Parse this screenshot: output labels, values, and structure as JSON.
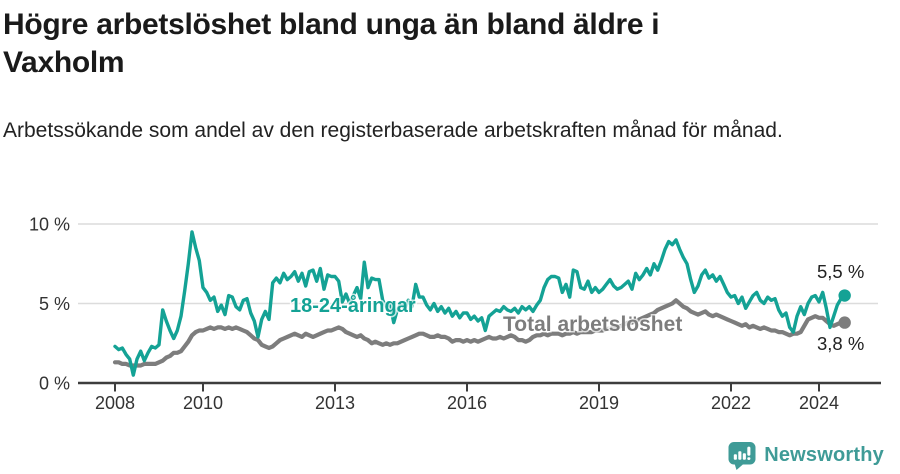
{
  "header": {
    "title_line1": "Högre arbetslöshet bland unga än bland äldre i",
    "title_line2": "Vaxholm",
    "subtitle": "Arbetssökande som andel av den registerbaserade arbetskraften månad för månad."
  },
  "chart_data": {
    "type": "line",
    "title": "Högre arbetslöshet bland unga än bland äldre i Vaxholm",
    "subtitle": "Arbetssökande som andel av den registerbaserade arbetskraften månad för månad.",
    "unit": "percent",
    "x_interval": "monthly",
    "x_start": "2008-01",
    "x_end": "2024-08",
    "x_tick_years": [
      2008,
      2010,
      2013,
      2016,
      2019,
      2022,
      2024
    ],
    "x_tick_labels": [
      "2008",
      "2010",
      "2013",
      "2016",
      "2019",
      "2022",
      "2024"
    ],
    "y_ticks": [
      0,
      5,
      10
    ],
    "y_tick_labels": [
      "0 %",
      "5 %",
      "10 %"
    ],
    "ylim": [
      0,
      10
    ],
    "grid": "horizontal-only",
    "colors": {
      "youth": "#14a295",
      "total": "#7d7d7d",
      "grid": "#dcdcdc",
      "axis": "#3d3d3d",
      "tick_text": "#333333",
      "end_label_text": "#222222"
    },
    "series": [
      {
        "name": "18-24-åringar",
        "color": "#14a295",
        "end_label": "5,5 %",
        "end_value": 5.5,
        "values": [
          2.3,
          2.1,
          2.2,
          1.8,
          1.5,
          0.5,
          1.5,
          2.0,
          1.4,
          1.9,
          2.3,
          2.2,
          2.4,
          4.6,
          3.9,
          3.3,
          2.8,
          3.3,
          4.2,
          5.8,
          7.5,
          9.5,
          8.5,
          7.7,
          6.0,
          5.7,
          5.2,
          5.4,
          4.5,
          4.9,
          4.3,
          5.5,
          5.4,
          4.8,
          4.6,
          5.2,
          5.3,
          4.4,
          3.9,
          2.9,
          4.0,
          4.5,
          4.0,
          6.3,
          6.6,
          6.3,
          6.9,
          6.5,
          6.7,
          7.0,
          6.4,
          6.9,
          6.1,
          7.0,
          7.1,
          6.4,
          7.2,
          5.9,
          6.8,
          6.7,
          6.7,
          6.4,
          5.1,
          5.6,
          5.0,
          5.5,
          6.0,
          5.3,
          7.6,
          6.0,
          6.6,
          6.5,
          6.5,
          5.2,
          4.8,
          5.0,
          3.8,
          4.6,
          5.0,
          4.7,
          5.2,
          4.8,
          6.2,
          5.4,
          5.4,
          4.9,
          4.6,
          5.0,
          4.5,
          4.8,
          4.4,
          4.7,
          4.2,
          4.5,
          4.1,
          4.4,
          4.4,
          4.0,
          4.2,
          3.9,
          4.1,
          3.3,
          4.2,
          4.4,
          4.6,
          4.5,
          4.8,
          4.6,
          4.5,
          4.7,
          4.4,
          4.8,
          4.6,
          4.8,
          4.5,
          4.9,
          5.2,
          6.0,
          6.5,
          6.7,
          6.7,
          6.6,
          5.7,
          6.2,
          5.4,
          7.1,
          7.0,
          6.0,
          5.9,
          6.4,
          5.7,
          6.0,
          5.7,
          5.9,
          6.2,
          6.5,
          6.1,
          5.9,
          6.0,
          6.2,
          6.4,
          5.9,
          6.9,
          6.5,
          6.8,
          7.2,
          6.8,
          7.5,
          7.1,
          7.7,
          8.4,
          8.9,
          8.7,
          9.0,
          8.4,
          7.9,
          7.5,
          6.5,
          5.7,
          6.1,
          6.8,
          7.1,
          6.6,
          6.8,
          6.4,
          6.7,
          6.2,
          5.7,
          5.4,
          5.5,
          5.0,
          5.4,
          4.7,
          5.1,
          5.5,
          5.7,
          5.2,
          5.0,
          5.4,
          5.2,
          5.3,
          4.6,
          4.2,
          4.4,
          3.5,
          3.2,
          4.2,
          4.8,
          4.3,
          5.0,
          5.4,
          5.5,
          5.1,
          5.7,
          4.7,
          3.5,
          4.2,
          4.9,
          5.3,
          5.5
        ]
      },
      {
        "name": "Total arbetslöshet",
        "color": "#7d7d7d",
        "end_label": "3,8 %",
        "end_value": 3.8,
        "values": [
          1.3,
          1.3,
          1.2,
          1.2,
          1.1,
          1.1,
          1.1,
          1.1,
          1.2,
          1.2,
          1.2,
          1.2,
          1.3,
          1.4,
          1.6,
          1.7,
          1.9,
          1.9,
          2.0,
          2.3,
          2.6,
          3.0,
          3.2,
          3.3,
          3.3,
          3.4,
          3.5,
          3.4,
          3.5,
          3.5,
          3.4,
          3.5,
          3.4,
          3.5,
          3.4,
          3.3,
          3.2,
          3.0,
          2.8,
          2.7,
          2.4,
          2.3,
          2.2,
          2.3,
          2.5,
          2.7,
          2.8,
          2.9,
          3.0,
          3.1,
          3.0,
          2.9,
          3.1,
          3.0,
          2.9,
          3.0,
          3.1,
          3.2,
          3.3,
          3.3,
          3.4,
          3.5,
          3.4,
          3.2,
          3.1,
          3.0,
          2.9,
          3.0,
          2.8,
          2.7,
          2.5,
          2.6,
          2.5,
          2.4,
          2.5,
          2.4,
          2.5,
          2.5,
          2.6,
          2.7,
          2.8,
          2.9,
          3.0,
          3.1,
          3.1,
          3.0,
          2.9,
          2.9,
          3.0,
          2.9,
          2.9,
          2.8,
          2.6,
          2.7,
          2.7,
          2.6,
          2.7,
          2.6,
          2.7,
          2.6,
          2.7,
          2.8,
          2.9,
          2.8,
          2.8,
          2.9,
          2.8,
          2.9,
          3.0,
          2.9,
          2.7,
          2.7,
          2.6,
          2.7,
          2.9,
          3.0,
          3.0,
          3.1,
          3.0,
          3.1,
          3.1,
          3.1,
          3.0,
          3.1,
          3.1,
          3.2,
          3.1,
          3.2,
          3.2,
          3.2,
          3.2,
          3.3,
          3.3,
          3.3,
          3.4,
          3.4,
          3.5,
          3.5,
          3.6,
          3.7,
          3.8,
          3.8,
          3.9,
          4.0,
          4.1,
          4.2,
          4.3,
          4.4,
          4.6,
          4.7,
          4.8,
          4.9,
          5.0,
          5.2,
          5.0,
          4.8,
          4.7,
          4.5,
          4.4,
          4.3,
          4.4,
          4.5,
          4.3,
          4.2,
          4.3,
          4.2,
          4.1,
          4.0,
          3.9,
          3.8,
          3.7,
          3.6,
          3.7,
          3.5,
          3.6,
          3.5,
          3.4,
          3.5,
          3.4,
          3.3,
          3.3,
          3.2,
          3.2,
          3.1,
          3.0,
          3.1,
          3.1,
          3.2,
          3.6,
          4.0,
          4.1,
          4.2,
          4.1,
          4.1,
          3.9,
          3.7,
          3.6,
          3.7,
          3.8,
          3.8
        ]
      }
    ]
  },
  "footer": {
    "brand": "Newsworthy",
    "logo_icon": "bar-chart-speech-bubble-icon",
    "brand_color": "#3f9b97"
  }
}
